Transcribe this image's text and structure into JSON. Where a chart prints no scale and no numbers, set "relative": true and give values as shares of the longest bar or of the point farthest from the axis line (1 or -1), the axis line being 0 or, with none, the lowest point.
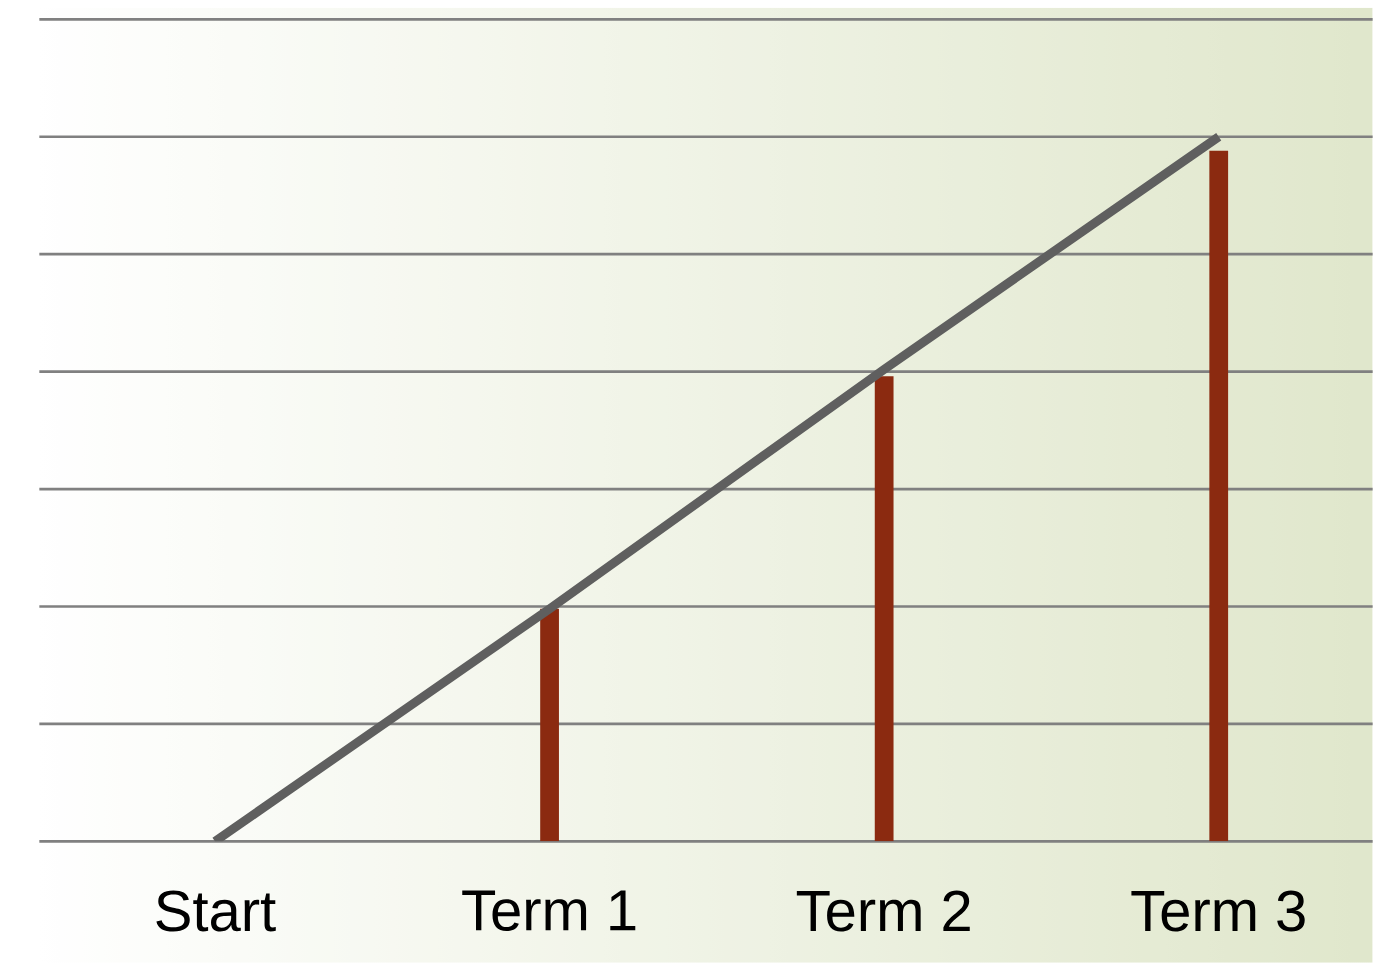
{
  "chart_data": {
    "type": "bar",
    "relative": true,
    "grid": "y",
    "tick_labels": "x",
    "categories": [
      "Start",
      "Term 1",
      "Term 2",
      "Term 3"
    ],
    "series": [
      {
        "color": "#8b2a10",
        "values": [
          null,
          0.33,
          0.66,
          0.98
        ]
      },
      {
        "type": "line",
        "color": "#5f5f5f",
        "values": [
          0,
          0.33,
          0.67,
          1
        ]
      }
    ]
  }
}
